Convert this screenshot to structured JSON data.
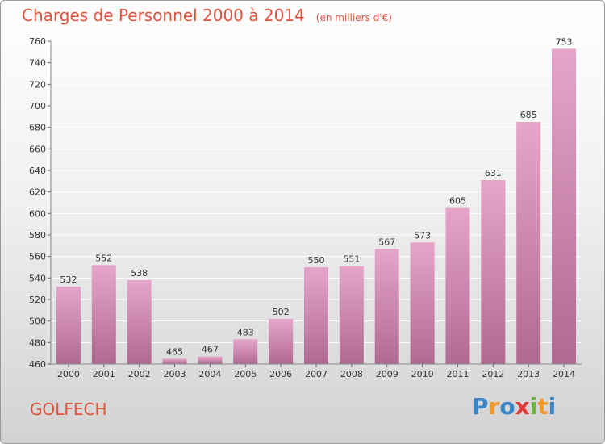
{
  "title": "Charges de Personnel 2000 à 2014",
  "subtitle": "(en milliers d'€)",
  "town": "GOLFECH",
  "logo": {
    "text": "Proxiti",
    "letters": [
      {
        "ch": "P",
        "color": "#3a86c8"
      },
      {
        "ch": "r",
        "color": "#f29a2e"
      },
      {
        "ch": "o",
        "color": "#3a86c8"
      },
      {
        "ch": "x",
        "color": "#e23b3b"
      },
      {
        "ch": "i",
        "color": "#6cb33f"
      },
      {
        "ch": "t",
        "color": "#f29a2e"
      },
      {
        "ch": "i",
        "color": "#3a86c8"
      }
    ]
  },
  "colors": {
    "title": "#e0523c",
    "bar_top": "#e6a5cb",
    "bar_bottom": "#b06a92",
    "grid": "#ffffff"
  },
  "chart_data": {
    "type": "bar",
    "title": "Charges de Personnel 2000 à 2014",
    "xlabel": "",
    "ylabel": "",
    "categories": [
      "2000",
      "2001",
      "2002",
      "2003",
      "2004",
      "2005",
      "2006",
      "2007",
      "2008",
      "2009",
      "2010",
      "2011",
      "2012",
      "2013",
      "2014"
    ],
    "values": [
      532,
      552,
      538,
      465,
      467,
      483,
      502,
      550,
      551,
      567,
      573,
      605,
      631,
      685,
      753
    ],
    "ylim": [
      460,
      760
    ],
    "yticks": [
      460,
      480,
      500,
      520,
      540,
      560,
      580,
      600,
      620,
      640,
      660,
      680,
      700,
      720,
      740,
      760
    ],
    "grid": true,
    "legend": "none"
  }
}
